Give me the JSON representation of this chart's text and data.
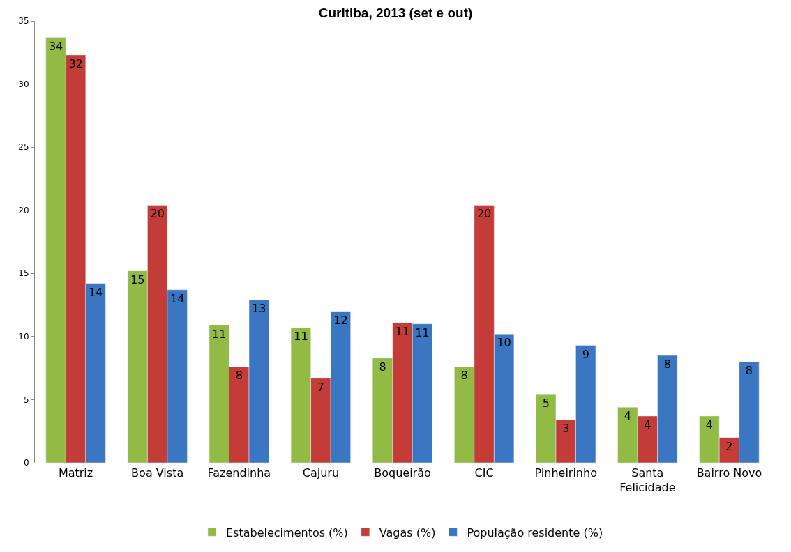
{
  "chart_data": {
    "type": "bar",
    "title": "Curitiba, 2013 (set e out)",
    "categories": [
      "Matriz",
      "Boa Vista",
      "Fazendinha",
      "Cajuru",
      "Boqueirão",
      "CIC",
      "Pinheirinho",
      "Santa Felicidade",
      "Bairro Novo"
    ],
    "series": [
      {
        "name": "Estabelecimentos (%)",
        "color": "#92bb45",
        "values": [
          33.7,
          15.2,
          10.9,
          10.7,
          8.3,
          7.6,
          5.4,
          4.4,
          3.7
        ],
        "value_labels": [
          "34",
          "15",
          "11",
          "11",
          "8",
          "8",
          "5",
          "4",
          "4"
        ]
      },
      {
        "name": "Vagas (%)",
        "color": "#c43c37",
        "values": [
          32.3,
          20.4,
          7.6,
          6.7,
          11.1,
          20.4,
          3.4,
          3.7,
          2.0
        ],
        "value_labels": [
          "32",
          "20",
          "8",
          "7",
          "11",
          "20",
          "3",
          "4",
          "2"
        ]
      },
      {
        "name": "População residente (%)",
        "color": "#3a76c2",
        "values": [
          14.2,
          13.7,
          12.9,
          12.0,
          11.0,
          10.2,
          9.3,
          8.5,
          8.0
        ],
        "value_labels": [
          "14",
          "14",
          "13",
          "12",
          "11",
          "10",
          "9",
          "8",
          "8"
        ]
      }
    ],
    "ylim": [
      0,
      35
    ],
    "yticks": [
      0,
      5,
      10,
      15,
      20,
      25,
      30,
      35
    ],
    "legend": "bottom"
  }
}
